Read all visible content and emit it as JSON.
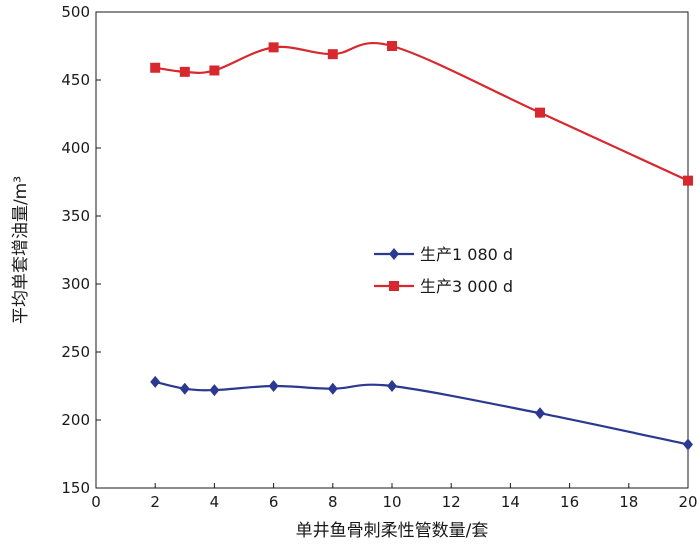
{
  "chart_data": {
    "type": "line",
    "title": "",
    "xlabel": "单井鱼骨刺柔性管数量/套",
    "ylabel": "平均单套增油量/m³",
    "xlim": [
      0,
      20
    ],
    "ylim": [
      150,
      500
    ],
    "xticks": [
      0,
      2,
      4,
      6,
      8,
      10,
      12,
      14,
      16,
      18,
      20
    ],
    "yticks": [
      150,
      200,
      250,
      300,
      350,
      400,
      450,
      500
    ],
    "grid": false,
    "legend_position": "center-right",
    "series": [
      {
        "name": "生产1 080 d",
        "color": "#2b3990",
        "marker": "diamond",
        "x": [
          2,
          3,
          4,
          6,
          8,
          10,
          15,
          20
        ],
        "y": [
          228,
          223,
          222,
          225,
          223,
          225,
          205,
          182
        ]
      },
      {
        "name": "生产3 000 d",
        "color": "#d7282f",
        "marker": "square",
        "x": [
          2,
          3,
          4,
          6,
          8,
          10,
          15,
          20
        ],
        "y": [
          459,
          456,
          457,
          474,
          469,
          475,
          426,
          376
        ]
      }
    ]
  }
}
